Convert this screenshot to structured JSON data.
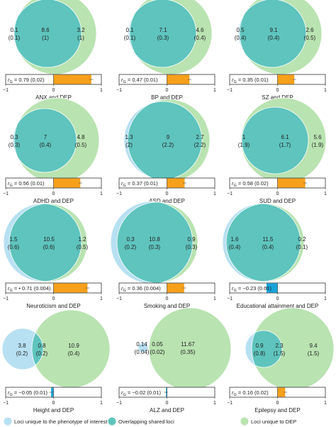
{
  "colors": {
    "unique_phenotype": "#b7e0f2",
    "overlap": "#5ec4bd",
    "unique_dep": "#b9e3b1",
    "rg_positive": "#f7a01b",
    "rg_negative": "#17a5dc"
  },
  "rg_axis": {
    "min": -1,
    "max": 1,
    "ticks": [
      "−1",
      "0",
      "1"
    ]
  },
  "legend": [
    {
      "key": "unique_phenotype",
      "label": "Loci unique to the phenotype of interest"
    },
    {
      "key": "overlap",
      "label": "Overlapping shared loci"
    },
    {
      "key": "unique_dep",
      "label": "Loci unique to DEP"
    }
  ],
  "chart_data": [
    {
      "type": "venn",
      "title": "ANX and DEP",
      "unique_phenotype": {
        "value": "0.1",
        "sd": "(0.1)"
      },
      "shared": {
        "value": "8.6",
        "sd": "(1)"
      },
      "unique_dep": {
        "value": "3.2",
        "sd": "(1)"
      },
      "rg": 0.79,
      "rg_label": "r",
      "rg_sub": "G",
      "rg_text": " = 0.79 (0.02)"
    },
    {
      "type": "venn",
      "title": "BP and DEP",
      "unique_phenotype": {
        "value": "0.1",
        "sd": "(0.1)"
      },
      "shared": {
        "value": "7.1",
        "sd": "(0.3)"
      },
      "unique_dep": {
        "value": "4.6",
        "sd": "(0.4)"
      },
      "rg": 0.47,
      "rg_label": "r",
      "rg_sub": "G",
      "rg_text": " = 0.47 (0.01)"
    },
    {
      "type": "venn",
      "title": "SZ and DEP",
      "unique_phenotype": {
        "value": "0.5",
        "sd": "(0.4)"
      },
      "shared": {
        "value": "9.1",
        "sd": "(0.4)"
      },
      "unique_dep": {
        "value": "2.6",
        "sd": "(0.5)"
      },
      "rg": 0.35,
      "rg_label": "r",
      "rg_sub": "G",
      "rg_text": " = 0.35 (0.01)"
    },
    {
      "type": "venn",
      "title": "ADHD and DEP",
      "unique_phenotype": {
        "value": "0.3",
        "sd": "(0.3)"
      },
      "shared": {
        "value": "7",
        "sd": "(0.4)"
      },
      "unique_dep": {
        "value": "4.8",
        "sd": "(0.5)"
      },
      "rg": 0.56,
      "rg_label": "r",
      "rg_sub": "G",
      "rg_text": " = 0.56 (0.01)"
    },
    {
      "type": "venn",
      "title": "ASD and DEP",
      "unique_phenotype": {
        "value": "1.3",
        "sd": "(2)"
      },
      "shared": {
        "value": "9",
        "sd": "(2.2)"
      },
      "unique_dep": {
        "value": "2.7",
        "sd": "(2.2)"
      },
      "rg": 0.37,
      "rg_label": "r",
      "rg_sub": "G",
      "rg_text": " = 0.37 (0.01)"
    },
    {
      "type": "venn",
      "title": "SUD and DEP",
      "unique_phenotype": {
        "value": "1",
        "sd": "(1.9)"
      },
      "shared": {
        "value": "6.1",
        "sd": "(1.7)"
      },
      "unique_dep": {
        "value": "5.6",
        "sd": "(1.9)"
      },
      "rg": 0.58,
      "rg_label": "r",
      "rg_sub": "G",
      "rg_text": " = 0.58 (0.02)"
    },
    {
      "type": "venn",
      "title": "Neuroticism and DEP",
      "unique_phenotype": {
        "value": "1.5",
        "sd": "(0.6)"
      },
      "shared": {
        "value": "10.5",
        "sd": "(0.6)"
      },
      "unique_dep": {
        "value": "1.2",
        "sd": "(0.5)"
      },
      "rg": 0.71,
      "rg_label": "r",
      "rg_sub": "G",
      "rg_text": " = • 0.71 (0.004)"
    },
    {
      "type": "venn",
      "title": "Smoking and DEP",
      "unique_phenotype": {
        "value": "0.3",
        "sd": "(0.2)"
      },
      "shared": {
        "value": "10.8",
        "sd": "(0.3)"
      },
      "unique_dep": {
        "value": "0.9",
        "sd": "(0.3)"
      },
      "rg": 0.36,
      "rg_label": "r",
      "rg_sub": "G",
      "rg_text": " = 0.36 (0.004)"
    },
    {
      "type": "venn",
      "title": "Educational attainment and DEP",
      "unique_phenotype": {
        "value": "1.6",
        "sd": "(0.4)"
      },
      "shared": {
        "value": "11.5",
        "sd": "(0.4)"
      },
      "unique_dep": {
        "value": "0.2",
        "sd": "(0.1)"
      },
      "rg": -0.23,
      "rg_label": "r",
      "rg_sub": "G",
      "rg_text": " = −0.23 (0.01)"
    },
    {
      "type": "venn",
      "title": "Height and DEP",
      "unique_phenotype": {
        "value": "3.8",
        "sd": "(0.2)"
      },
      "shared": {
        "value": "0.8",
        "sd": "(0.2)"
      },
      "unique_dep": {
        "value": "10.9",
        "sd": "(0.4)"
      },
      "rg": -0.05,
      "rg_label": "r",
      "rg_sub": "G",
      "rg_text": " = −0.05 (0.01)"
    },
    {
      "type": "venn",
      "title": "ALZ and DEP",
      "unique_phenotype": {
        "value": "0.14",
        "sd": "(0.04)"
      },
      "shared": {
        "value": "0.05",
        "sd": "(0.02)"
      },
      "unique_dep": {
        "value": "11.67",
        "sd": "(0.35)"
      },
      "rg": -0.02,
      "rg_label": "r",
      "rg_sub": "G",
      "rg_text": " = −0.02 (0.01)"
    },
    {
      "type": "venn",
      "title": "Epilepsy and DEP",
      "unique_phenotype": {
        "value": "0.9",
        "sd": "(0.8)"
      },
      "shared": {
        "value": "2.3",
        "sd": "(1.5)"
      },
      "unique_dep": {
        "value": "9.4",
        "sd": "(1.5)"
      },
      "rg": 0.16,
      "rg_label": "r",
      "rg_sub": "G",
      "rg_text": " = 0.16 (0.02)"
    }
  ]
}
